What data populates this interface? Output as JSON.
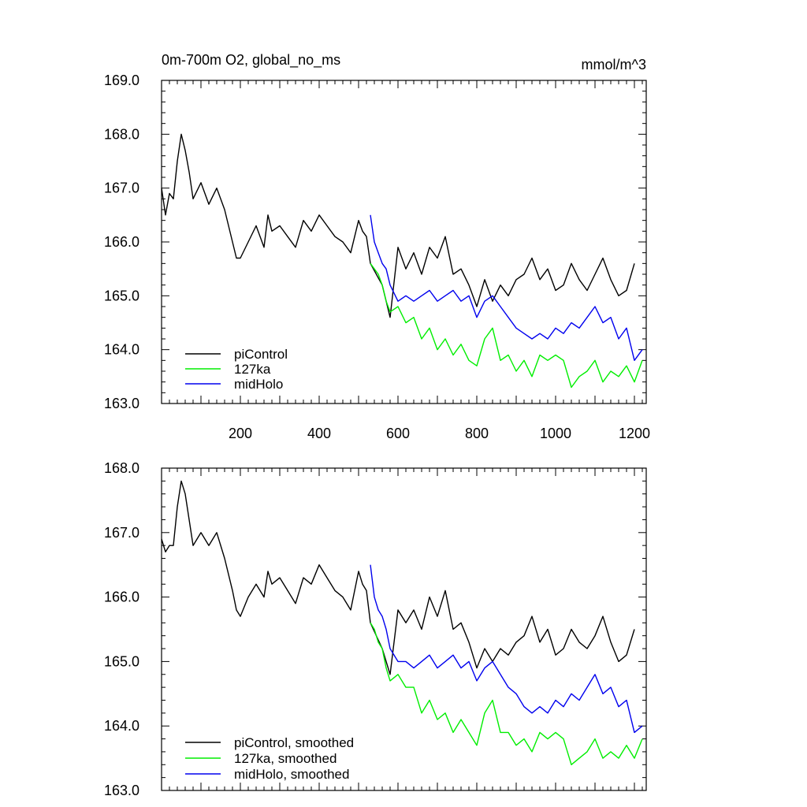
{
  "chart_data": [
    {
      "type": "line",
      "title_left": "0m-700m O2, global_no_ms",
      "title_right": "mmol/m^3",
      "xlim": [
        0,
        1230
      ],
      "ylim": [
        163.0,
        169.0
      ],
      "x_ticks": [
        200,
        400,
        600,
        800,
        1000,
        1200
      ],
      "x_tick_labels": [
        "200",
        "400",
        "600",
        "800",
        "1000",
        "1200"
      ],
      "y_ticks": [
        163.0,
        164.0,
        165.0,
        166.0,
        167.0,
        168.0,
        169.0
      ],
      "y_tick_labels": [
        "163.0",
        "164.0",
        "165.0",
        "166.0",
        "167.0",
        "168.0",
        "169.0"
      ],
      "legend_position": "bottom-left",
      "series": [
        {
          "name": "piControl",
          "color": "#000000",
          "x": [
            0,
            10,
            20,
            30,
            40,
            50,
            60,
            70,
            80,
            100,
            120,
            140,
            160,
            180,
            190,
            200,
            220,
            240,
            260,
            270,
            280,
            300,
            320,
            340,
            360,
            380,
            400,
            420,
            440,
            460,
            480,
            500,
            510,
            520,
            530,
            560,
            580,
            600,
            620,
            640,
            660,
            680,
            700,
            720,
            740,
            760,
            780,
            800,
            820,
            840,
            860,
            880,
            900,
            920,
            940,
            960,
            980,
            1000,
            1020,
            1040,
            1060,
            1080,
            1100,
            1120,
            1140,
            1160,
            1180,
            1200
          ],
          "values": [
            167.0,
            166.5,
            166.9,
            166.8,
            167.5,
            168.0,
            167.7,
            167.3,
            166.8,
            167.1,
            166.7,
            167.0,
            166.6,
            166.0,
            165.7,
            165.7,
            166.0,
            166.3,
            165.9,
            166.5,
            166.2,
            166.3,
            166.1,
            165.9,
            166.4,
            166.2,
            166.5,
            166.3,
            166.1,
            166.0,
            165.8,
            166.4,
            166.2,
            166.1,
            165.6,
            165.2,
            164.6,
            165.9,
            165.5,
            165.8,
            165.4,
            165.9,
            165.7,
            166.1,
            165.4,
            165.5,
            165.2,
            164.8,
            165.3,
            164.9,
            165.2,
            165.0,
            165.3,
            165.4,
            165.7,
            165.3,
            165.5,
            165.1,
            165.2,
            165.6,
            165.3,
            165.1,
            165.4,
            165.7,
            165.3,
            165.0,
            165.1,
            165.6
          ]
        },
        {
          "name": "127ka",
          "color": "#00ee00",
          "x": [
            530,
            540,
            550,
            560,
            570,
            580,
            600,
            620,
            640,
            660,
            680,
            700,
            720,
            740,
            760,
            780,
            800,
            820,
            840,
            860,
            880,
            900,
            920,
            940,
            960,
            980,
            1000,
            1020,
            1040,
            1060,
            1080,
            1100,
            1120,
            1140,
            1160,
            1180,
            1200,
            1220
          ],
          "values": [
            165.6,
            165.5,
            165.4,
            165.2,
            164.9,
            164.7,
            164.8,
            164.5,
            164.6,
            164.2,
            164.4,
            164.0,
            164.2,
            163.9,
            164.1,
            163.8,
            163.7,
            164.2,
            164.4,
            163.8,
            163.9,
            163.6,
            163.8,
            163.5,
            163.9,
            163.8,
            163.9,
            163.8,
            163.3,
            163.5,
            163.6,
            163.8,
            163.4,
            163.6,
            163.5,
            163.7,
            163.4,
            163.8
          ]
        },
        {
          "name": "midHolo",
          "color": "#0000ee",
          "x": [
            530,
            540,
            550,
            560,
            570,
            580,
            600,
            620,
            640,
            660,
            680,
            700,
            720,
            740,
            760,
            780,
            800,
            820,
            840,
            860,
            880,
            900,
            920,
            940,
            960,
            980,
            1000,
            1020,
            1040,
            1060,
            1080,
            1100,
            1120,
            1140,
            1160,
            1180,
            1200,
            1220
          ],
          "values": [
            166.5,
            166.0,
            165.8,
            165.6,
            165.5,
            165.2,
            164.9,
            165.0,
            164.9,
            165.0,
            165.1,
            164.9,
            165.0,
            165.1,
            164.9,
            165.0,
            164.6,
            164.9,
            165.0,
            164.8,
            164.6,
            164.4,
            164.3,
            164.2,
            164.3,
            164.2,
            164.4,
            164.3,
            164.5,
            164.4,
            164.6,
            164.8,
            164.5,
            164.6,
            164.2,
            164.4,
            163.8,
            164.0
          ]
        }
      ]
    },
    {
      "type": "line",
      "xlim": [
        0,
        1230
      ],
      "ylim": [
        163.0,
        168.0
      ],
      "y_ticks": [
        163.0,
        164.0,
        165.0,
        166.0,
        167.0,
        168.0
      ],
      "y_tick_labels": [
        "163.0",
        "164.0",
        "165.0",
        "166.0",
        "167.0",
        "168.0"
      ],
      "x_ticks": [
        200,
        400,
        600,
        800,
        1000,
        1200
      ],
      "legend_position": "bottom-left",
      "series": [
        {
          "name": "piControl, smoothed",
          "color": "#000000",
          "x": [
            0,
            10,
            20,
            30,
            40,
            50,
            60,
            70,
            80,
            100,
            120,
            140,
            160,
            180,
            190,
            200,
            220,
            240,
            260,
            270,
            280,
            300,
            320,
            340,
            360,
            380,
            400,
            420,
            440,
            460,
            480,
            500,
            510,
            520,
            530,
            560,
            580,
            600,
            620,
            640,
            660,
            680,
            700,
            720,
            740,
            760,
            780,
            800,
            820,
            840,
            860,
            880,
            900,
            920,
            940,
            960,
            980,
            1000,
            1020,
            1040,
            1060,
            1080,
            1100,
            1120,
            1140,
            1160,
            1180,
            1200
          ],
          "values": [
            166.9,
            166.7,
            166.8,
            166.8,
            167.4,
            167.8,
            167.6,
            167.2,
            166.8,
            167.0,
            166.8,
            167.0,
            166.6,
            166.1,
            165.8,
            165.7,
            166.0,
            166.2,
            166.0,
            166.4,
            166.2,
            166.3,
            166.1,
            165.9,
            166.3,
            166.2,
            166.5,
            166.3,
            166.1,
            166.0,
            165.8,
            166.4,
            166.2,
            166.1,
            165.6,
            165.2,
            164.8,
            165.8,
            165.6,
            165.8,
            165.5,
            166.0,
            165.7,
            166.1,
            165.5,
            165.6,
            165.3,
            164.9,
            165.2,
            165.0,
            165.2,
            165.1,
            165.3,
            165.4,
            165.7,
            165.3,
            165.5,
            165.1,
            165.2,
            165.5,
            165.3,
            165.2,
            165.4,
            165.7,
            165.3,
            165.0,
            165.1,
            165.5
          ]
        },
        {
          "name": "127ka, smoothed",
          "color": "#00ee00",
          "x": [
            530,
            540,
            550,
            560,
            570,
            580,
            600,
            620,
            640,
            660,
            680,
            700,
            720,
            740,
            760,
            780,
            800,
            820,
            840,
            860,
            880,
            900,
            920,
            940,
            960,
            980,
            1000,
            1020,
            1040,
            1060,
            1080,
            1100,
            1120,
            1140,
            1160,
            1180,
            1200,
            1220
          ],
          "values": [
            165.6,
            165.5,
            165.3,
            165.2,
            164.9,
            164.7,
            164.8,
            164.6,
            164.6,
            164.2,
            164.4,
            164.1,
            164.2,
            163.9,
            164.1,
            163.9,
            163.7,
            164.2,
            164.4,
            163.9,
            163.9,
            163.7,
            163.8,
            163.6,
            163.9,
            163.8,
            163.9,
            163.8,
            163.4,
            163.5,
            163.6,
            163.8,
            163.5,
            163.6,
            163.5,
            163.7,
            163.5,
            163.8
          ]
        },
        {
          "name": "midHolo, smoothed",
          "color": "#0000ee",
          "x": [
            530,
            540,
            550,
            560,
            570,
            580,
            600,
            620,
            640,
            660,
            680,
            700,
            720,
            740,
            760,
            780,
            800,
            820,
            840,
            860,
            880,
            900,
            920,
            940,
            960,
            980,
            1000,
            1020,
            1040,
            1060,
            1080,
            1100,
            1120,
            1140,
            1160,
            1180,
            1200,
            1220
          ],
          "values": [
            166.5,
            166.0,
            165.8,
            165.7,
            165.5,
            165.2,
            165.0,
            165.0,
            164.9,
            165.0,
            165.1,
            164.9,
            165.0,
            165.1,
            164.9,
            165.0,
            164.7,
            164.9,
            165.0,
            164.8,
            164.6,
            164.5,
            164.3,
            164.2,
            164.3,
            164.2,
            164.4,
            164.3,
            164.5,
            164.4,
            164.6,
            164.8,
            164.5,
            164.6,
            164.3,
            164.4,
            163.9,
            164.0
          ]
        }
      ]
    }
  ]
}
